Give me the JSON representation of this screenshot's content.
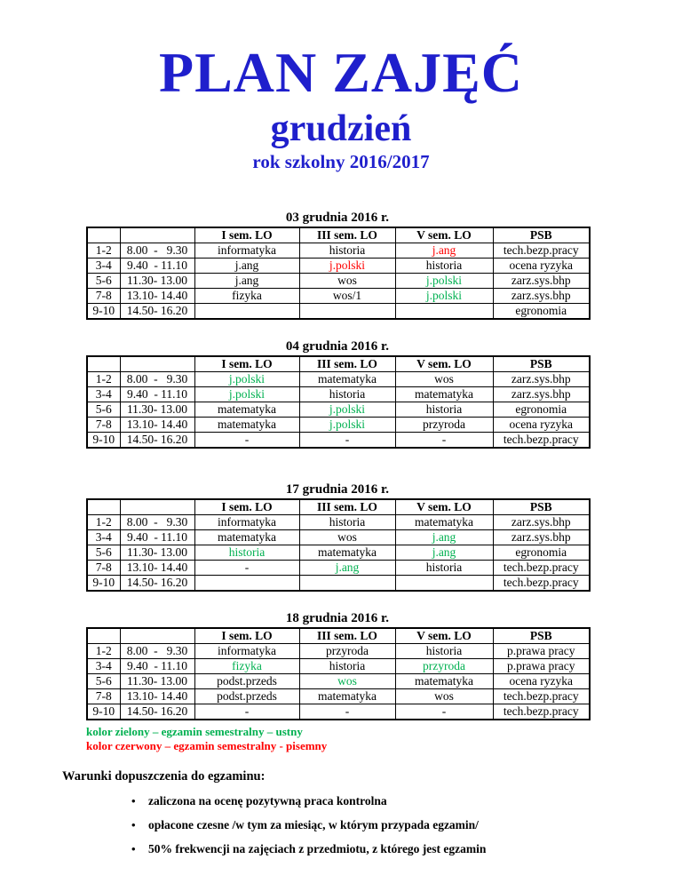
{
  "page": {
    "title": "PLAN ZAJĘĆ",
    "subtitle": "grudzień",
    "school_year": "rok szkolny 2016/2017"
  },
  "colors": {
    "accent_blue": "#1F1FCC",
    "exam_oral_green": "#00B050",
    "exam_written_red": "#FF0000"
  },
  "tables": [
    {
      "title": "03 grudnia 2016 r.",
      "headers": [
        "",
        "",
        "I sem. LO",
        "III sem. LO",
        "V sem. LO",
        "PSB"
      ],
      "rows": [
        [
          {
            "t": "1-2"
          },
          {
            "t": "8.00  -   9.30"
          },
          {
            "t": "informatyka"
          },
          {
            "t": "historia"
          },
          {
            "t": "j.ang",
            "c": "red"
          },
          {
            "t": "tech.bezp.pracy"
          }
        ],
        [
          {
            "t": "3-4"
          },
          {
            "t": "9.40  - 11.10"
          },
          {
            "t": "j.ang"
          },
          {
            "t": "j.polski",
            "c": "red"
          },
          {
            "t": "historia"
          },
          {
            "t": "ocena ryzyka"
          }
        ],
        [
          {
            "t": "5-6"
          },
          {
            "t": "11.30- 13.00"
          },
          {
            "t": "j.ang"
          },
          {
            "t": "wos"
          },
          {
            "t": "j.polski",
            "c": "green"
          },
          {
            "t": "zarz.sys.bhp"
          }
        ],
        [
          {
            "t": "7-8"
          },
          {
            "t": "13.10- 14.40"
          },
          {
            "t": "fizyka"
          },
          {
            "t": "wos/1"
          },
          {
            "t": "j.polski",
            "c": "green"
          },
          {
            "t": "zarz.sys.bhp"
          }
        ],
        [
          {
            "t": "9-10"
          },
          {
            "t": "14.50- 16.20"
          },
          {
            "t": ""
          },
          {
            "t": ""
          },
          {
            "t": ""
          },
          {
            "t": "egronomia"
          }
        ]
      ]
    },
    {
      "title": "04 grudnia 2016 r.",
      "headers": [
        "",
        "",
        "I sem. LO",
        "III sem. LO",
        "V sem. LO",
        "PSB"
      ],
      "rows": [
        [
          {
            "t": "1-2"
          },
          {
            "t": "8.00  -   9.30"
          },
          {
            "t": "j.polski",
            "c": "green"
          },
          {
            "t": "matematyka"
          },
          {
            "t": "wos"
          },
          {
            "t": "zarz.sys.bhp"
          }
        ],
        [
          {
            "t": "3-4"
          },
          {
            "t": "9.40  - 11.10"
          },
          {
            "t": "j.polski",
            "c": "green"
          },
          {
            "t": "historia"
          },
          {
            "t": "matematyka"
          },
          {
            "t": "zarz.sys.bhp"
          }
        ],
        [
          {
            "t": "5-6"
          },
          {
            "t": "11.30- 13.00"
          },
          {
            "t": "matematyka"
          },
          {
            "t": "j.polski",
            "c": "green"
          },
          {
            "t": "historia"
          },
          {
            "t": "egronomia"
          }
        ],
        [
          {
            "t": "7-8"
          },
          {
            "t": "13.10- 14.40"
          },
          {
            "t": "matematyka"
          },
          {
            "t": "j.polski",
            "c": "green"
          },
          {
            "t": "przyroda"
          },
          {
            "t": "ocena ryzyka"
          }
        ],
        [
          {
            "t": "9-10"
          },
          {
            "t": "14.50- 16.20"
          },
          {
            "t": "-"
          },
          {
            "t": "-"
          },
          {
            "t": "-"
          },
          {
            "t": "tech.bezp.pracy"
          }
        ]
      ]
    },
    {
      "title": "17 grudnia 2016 r.",
      "headers": [
        "",
        "",
        "I sem. LO",
        "III sem. LO",
        "V sem. LO",
        "PSB"
      ],
      "rows": [
        [
          {
            "t": "1-2"
          },
          {
            "t": "8.00  -   9.30"
          },
          {
            "t": "informatyka"
          },
          {
            "t": "historia"
          },
          {
            "t": "matematyka"
          },
          {
            "t": "zarz.sys.bhp"
          }
        ],
        [
          {
            "t": "3-4"
          },
          {
            "t": "9.40  - 11.10"
          },
          {
            "t": "matematyka"
          },
          {
            "t": "wos"
          },
          {
            "t": "j.ang",
            "c": "green"
          },
          {
            "t": "zarz.sys.bhp"
          }
        ],
        [
          {
            "t": "5-6"
          },
          {
            "t": "11.30- 13.00"
          },
          {
            "t": "historia",
            "c": "green"
          },
          {
            "t": "matematyka"
          },
          {
            "t": "j.ang",
            "c": "green"
          },
          {
            "t": "egronomia"
          }
        ],
        [
          {
            "t": "7-8"
          },
          {
            "t": "13.10- 14.40"
          },
          {
            "t": "-"
          },
          {
            "t": "j.ang",
            "c": "green"
          },
          {
            "t": "historia"
          },
          {
            "t": "tech.bezp.pracy"
          }
        ],
        [
          {
            "t": "9-10"
          },
          {
            "t": "14.50- 16.20"
          },
          {
            "t": ""
          },
          {
            "t": ""
          },
          {
            "t": ""
          },
          {
            "t": "tech.bezp.pracy"
          }
        ]
      ]
    },
    {
      "title": "18 grudnia 2016 r.",
      "headers": [
        "",
        "",
        "I sem. LO",
        "III sem. LO",
        "V sem. LO",
        "PSB"
      ],
      "rows": [
        [
          {
            "t": "1-2"
          },
          {
            "t": "8.00  -   9.30"
          },
          {
            "t": "informatyka"
          },
          {
            "t": "przyroda"
          },
          {
            "t": "historia"
          },
          {
            "t": "p.prawa pracy"
          }
        ],
        [
          {
            "t": "3-4"
          },
          {
            "t": "9.40  - 11.10"
          },
          {
            "t": "fizyka",
            "c": "green"
          },
          {
            "t": "historia"
          },
          {
            "t": "przyroda",
            "c": "green"
          },
          {
            "t": "p.prawa pracy"
          }
        ],
        [
          {
            "t": "5-6"
          },
          {
            "t": "11.30- 13.00"
          },
          {
            "t": "podst.przeds"
          },
          {
            "t": "wos",
            "c": "green"
          },
          {
            "t": "matematyka"
          },
          {
            "t": "ocena ryzyka"
          }
        ],
        [
          {
            "t": "7-8"
          },
          {
            "t": "13.10- 14.40"
          },
          {
            "t": "podst.przeds"
          },
          {
            "t": "matematyka"
          },
          {
            "t": "wos"
          },
          {
            "t": "tech.bezp.pracy"
          }
        ],
        [
          {
            "t": "9-10"
          },
          {
            "t": "14.50- 16.20"
          },
          {
            "t": "-"
          },
          {
            "t": "-"
          },
          {
            "t": "-"
          },
          {
            "t": "tech.bezp.pracy"
          }
        ]
      ]
    }
  ],
  "legend": [
    {
      "text": "kolor zielony – egzamin semestralny – ustny",
      "color": "green"
    },
    {
      "text": "kolor czerwony – egzamin semestralny - pisemny",
      "color": "red"
    }
  ],
  "conditions": {
    "heading": "Warunki dopuszczenia do egzaminu:",
    "bullet": "•",
    "items": [
      "zaliczona na ocenę pozytywną praca kontrolna",
      "opłacone czesne /w tym za miesiąc, w którym przypada egzamin/",
      "50% frekwencji  na zajęciach z przedmiotu, z którego jest egzamin"
    ]
  }
}
